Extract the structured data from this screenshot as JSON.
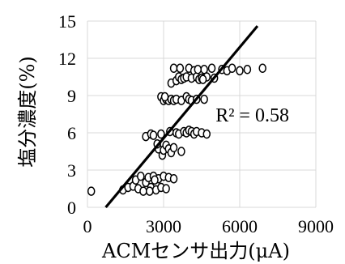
{
  "chart_data": {
    "type": "scatter",
    "xlabel": "ACMセンサ出力(μA)",
    "ylabel": "塩分濃度(%)",
    "xlim": [
      0,
      9000
    ],
    "ylim": [
      0,
      15
    ],
    "xticks": [
      "0",
      "3000",
      "6000",
      "9000"
    ],
    "yticks": [
      "0",
      "3",
      "6",
      "9",
      "12",
      "15"
    ],
    "xtick_values": [
      0,
      3000,
      6000,
      9000
    ],
    "ytick_values": [
      0,
      3,
      6,
      9,
      12,
      15
    ],
    "grid": true,
    "annotation": "R² = 0.58",
    "annotation_pos": [
      5050,
      6.9
    ],
    "trendline": [
      [
        720,
        0
      ],
      [
        6700,
        14.6
      ]
    ],
    "points": [
      [
        150,
        1.3
      ],
      [
        1400,
        1.4
      ],
      [
        1600,
        1.6
      ],
      [
        1800,
        1.7
      ],
      [
        1900,
        2.2
      ],
      [
        2000,
        1.5
      ],
      [
        2100,
        2.5
      ],
      [
        2200,
        1.3
      ],
      [
        2300,
        2.0
      ],
      [
        2400,
        2.4
      ],
      [
        2500,
        1.6
      ],
      [
        2600,
        2.5
      ],
      [
        2700,
        1.4
      ],
      [
        2800,
        2.3
      ],
      [
        2900,
        1.6
      ],
      [
        3000,
        2.5
      ],
      [
        3100,
        1.5
      ],
      [
        3200,
        2.4
      ],
      [
        3400,
        2.3
      ],
      [
        2450,
        1.3
      ],
      [
        2650,
        2.2
      ],
      [
        2300,
        5.7
      ],
      [
        2500,
        5.9
      ],
      [
        2600,
        5.8
      ],
      [
        2800,
        4.7
      ],
      [
        2900,
        5.9
      ],
      [
        2950,
        4.2
      ],
      [
        3000,
        4.6
      ],
      [
        3100,
        5.0
      ],
      [
        3200,
        4.7
      ],
      [
        3300,
        4.4
      ],
      [
        3400,
        4.8
      ],
      [
        3500,
        6.0
      ],
      [
        3600,
        5.9
      ],
      [
        3700,
        4.5
      ],
      [
        3800,
        6.1
      ],
      [
        3900,
        6.0
      ],
      [
        4000,
        6.2
      ],
      [
        4100,
        6.1
      ],
      [
        4200,
        5.9
      ],
      [
        4300,
        6.1
      ],
      [
        4500,
        6.0
      ],
      [
        3250,
        6.1
      ],
      [
        4700,
        5.9
      ],
      [
        2750,
        5.1
      ],
      [
        2900,
        8.9
      ],
      [
        3000,
        8.6
      ],
      [
        3100,
        8.7
      ],
      [
        3200,
        8.6
      ],
      [
        3300,
        8.7
      ],
      [
        3400,
        8.6
      ],
      [
        3500,
        8.7
      ],
      [
        3700,
        8.6
      ],
      [
        3900,
        8.9
      ],
      [
        4000,
        8.7
      ],
      [
        4100,
        8.6
      ],
      [
        4300,
        8.7
      ],
      [
        4600,
        8.7
      ],
      [
        3050,
        8.9
      ],
      [
        3300,
        10.0
      ],
      [
        3400,
        11.2
      ],
      [
        3500,
        10.2
      ],
      [
        3600,
        10.5
      ],
      [
        3700,
        10.3
      ],
      [
        3800,
        10.4
      ],
      [
        3900,
        10.5
      ],
      [
        4000,
        11.2
      ],
      [
        4100,
        10.4
      ],
      [
        4200,
        11.0
      ],
      [
        4300,
        10.5
      ],
      [
        4400,
        10.3
      ],
      [
        4500,
        10.4
      ],
      [
        4600,
        11.1
      ],
      [
        4700,
        10.5
      ],
      [
        4900,
        11.2
      ],
      [
        5000,
        10.4
      ],
      [
        5300,
        11.1
      ],
      [
        5500,
        11.0
      ],
      [
        5700,
        11.2
      ],
      [
        6000,
        11.0
      ],
      [
        6300,
        11.1
      ],
      [
        6900,
        11.2
      ],
      [
        3650,
        11.2
      ],
      [
        4350,
        11.1
      ],
      [
        4550,
        10.3
      ]
    ]
  }
}
